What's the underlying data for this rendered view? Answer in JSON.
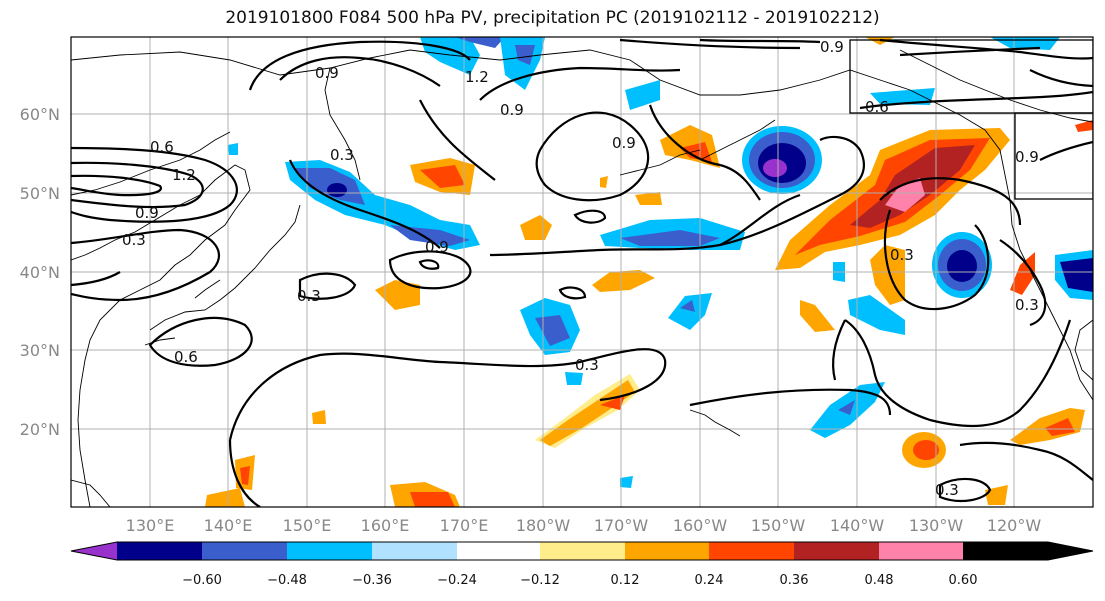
{
  "title": "2019101800 F084 500 hPa PV, precipitation PC (2019102112 - 2019102212)",
  "lat_labels": [
    "60°N",
    "50°N",
    "40°N",
    "30°N",
    "20°N"
  ],
  "lon_labels": [
    "130°E",
    "140°E",
    "150°E",
    "160°E",
    "170°E",
    "180°W",
    "170°W",
    "160°W",
    "150°W",
    "140°W",
    "130°W",
    "120°W"
  ],
  "colorbar": {
    "colors": [
      "#9932CC",
      "#00008B",
      "#3A5FCD",
      "#00BFFF",
      "#B0E2FF",
      "#FFFFFF",
      "#FFEC8B",
      "#FFA500",
      "#FF4500",
      "#B22222",
      "#FF82AB"
    ],
    "tick_labels": [
      "−0.60",
      "−0.48",
      "−0.36",
      "−0.24",
      "−0.12",
      "0.12",
      "0.24",
      "0.36",
      "0.48",
      "0.60"
    ]
  },
  "contour_labels": [
    "0.9",
    "1.2",
    "0.9",
    "0.6",
    "0.6",
    "1.2",
    "0.9",
    "0.3",
    "0.9",
    "0.9",
    "0.3",
    "0.3",
    "0.6",
    "0.3",
    "0.9",
    "0.3",
    "0.3",
    "0.3",
    "0.9"
  ]
}
